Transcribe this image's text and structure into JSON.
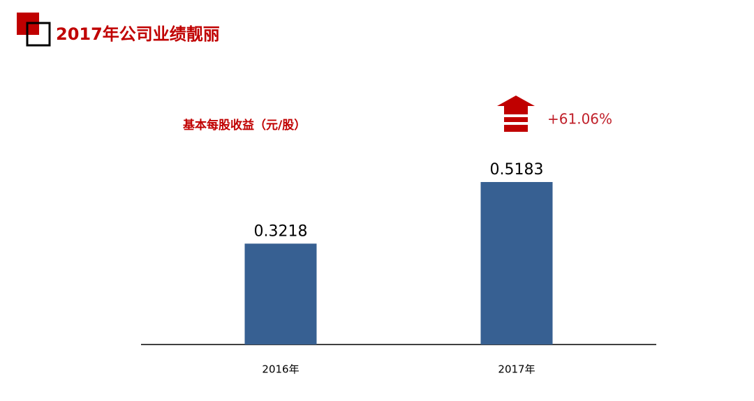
{
  "chart_data": {
    "type": "bar",
    "title": "2017年公司业绩靓丽",
    "subtitle": "基本每股收益（元/股）",
    "annotation": "+61.06%",
    "categories": [
      "2016年",
      "2017年"
    ],
    "values": [
      0.3218,
      0.5183
    ],
    "color": "#376092"
  }
}
